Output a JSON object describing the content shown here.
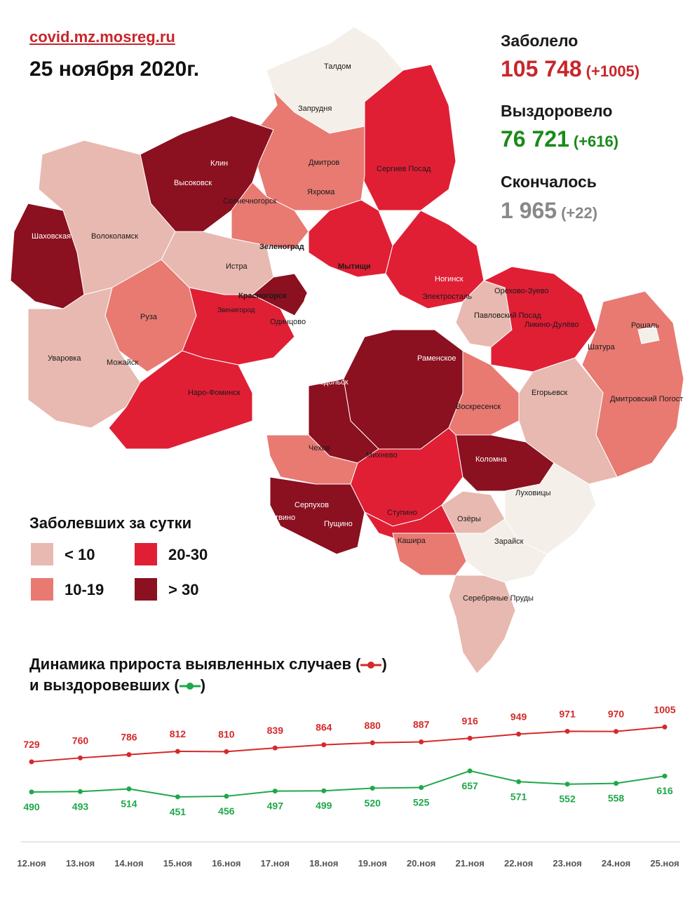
{
  "header": {
    "source": "covid.mz.mosreg.ru",
    "date": "25 ноября 2020г."
  },
  "stats": {
    "infected": {
      "label": "Заболело",
      "value": "105 748",
      "delta": "(+1005)",
      "color": "#c8262b"
    },
    "recovered": {
      "label": "Выздоровело",
      "value": "76 721",
      "delta": "(+616)",
      "color": "#1a8a1a"
    },
    "deaths": {
      "label": "Скончалось",
      "value": "1 965",
      "delta": "(+22)",
      "color": "#888888"
    }
  },
  "legend": {
    "title": "Заболевших за сутки",
    "items": [
      {
        "label": "< 10",
        "color": "#e8b9b0"
      },
      {
        "label": "10-19",
        "color": "#e87a72"
      },
      {
        "label": "20-30",
        "color": "#e01f35"
      },
      {
        "label": "> 30",
        "color": "#8b1020"
      }
    ]
  },
  "map": {
    "labels": {
      "taldom": "Талдом",
      "zaprudnya": "Запрудня",
      "dmitrov": "Дмитров",
      "yakhroma": "Яхрома",
      "sergiev_posad": "Сергиев Посад",
      "klin": "Клин",
      "vysokovsk": "Высоковск",
      "solnechnogorsk": "Солнечногорск",
      "shakhovskaya": "Шаховская",
      "volokolamsk": "Волоколамск",
      "zelenograd": "Зеленоград",
      "istra": "Истра",
      "mytishchi": "Мытищи",
      "noginsk": "Ногинск",
      "elektrostal": "Электросталь",
      "orekhovo_zuevo": "Орехово-Зуево",
      "krasnogorsk": "Красногорск",
      "zvenigorod": "Звенигород",
      "odintsovo": "Одинцово",
      "ruza": "Руза",
      "pavlovsky_posad": "Павловский Посад",
      "likino_dulevo": "Ликино-Дулёво",
      "roshal": "Рошаль",
      "uvarovka": "Уваровка",
      "mozhaysk": "Можайск",
      "ramenskoe": "Раменское",
      "shatura": "Шатура",
      "naro_fominsk": "Наро-Фоминск",
      "podolsk": "Подольск",
      "voskresensk": "Воскресенск",
      "egoryevsk": "Егорьевск",
      "dmitrovsky_pogost": "Дмитровский Погост",
      "chekhov": "Чехов",
      "mikhnevo": "Михнево",
      "kolomna": "Коломна",
      "lukhovitsy": "Луховицы",
      "serpukhov": "Серпухов",
      "protvino": "Протвино",
      "pushchino": "Пущино",
      "stupino": "Ступино",
      "ozyory": "Озёры",
      "zaraysk": "Зарайск",
      "kashira": "Кашира",
      "serebryanye_prudy": "Серебряные Пруды"
    }
  },
  "dynamics": {
    "title_line1": "Динамика прироста выявленных случаев (",
    "title_close1": ")",
    "title_line2": "и выздоровевших (",
    "title_close2": ")"
  },
  "chart_data": {
    "type": "line",
    "categories": [
      "12.ноя",
      "13.ноя",
      "14.ноя",
      "15.ноя",
      "16.ноя",
      "17.ноя",
      "18.ноя",
      "19.ноя",
      "20.ноя",
      "21.ноя",
      "22.ноя",
      "23.ноя",
      "24.ноя",
      "25.ноя"
    ],
    "series": [
      {
        "key": "cases",
        "color": "#d42a2a",
        "values": [
          729,
          760,
          786,
          812,
          810,
          839,
          864,
          880,
          887,
          916,
          949,
          971,
          970,
          1005
        ]
      },
      {
        "key": "recovered",
        "color": "#1fa84a",
        "values": [
          490,
          493,
          514,
          451,
          456,
          497,
          499,
          520,
          525,
          657,
          571,
          552,
          558,
          616
        ]
      }
    ],
    "title": "Динамика прироста выявленных случаев () и выздоровевших ()",
    "grid": false,
    "legend": "in title"
  }
}
